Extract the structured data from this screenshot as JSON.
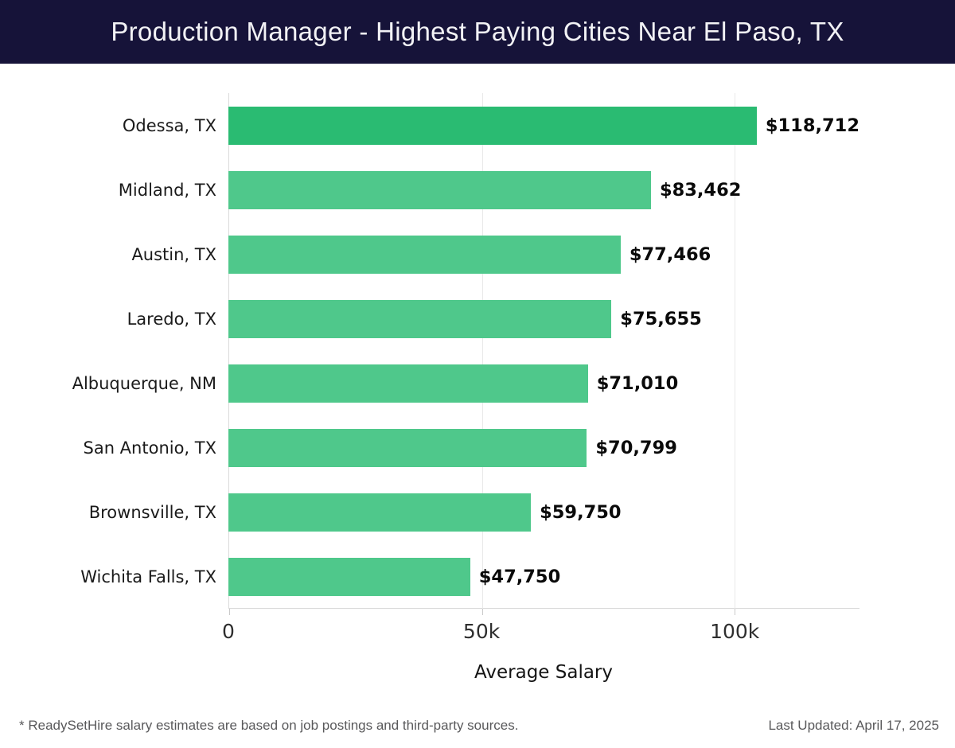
{
  "header": {
    "title": "Production Manager - Highest Paying Cities Near El Paso, TX",
    "bg_color": "#161339",
    "text_color": "#f2f2f5"
  },
  "chart_data": {
    "type": "bar",
    "orientation": "horizontal",
    "title": "Production Manager - Highest Paying Cities Near El Paso, TX",
    "categories": [
      "Odessa, TX",
      "Midland, TX",
      "Austin, TX",
      "Laredo, TX",
      "Albuquerque, NM",
      "San Antonio, TX",
      "Brownsville, TX",
      "Wichita Falls, TX"
    ],
    "values": [
      118712,
      83462,
      77466,
      75655,
      71010,
      70799,
      59750,
      47750
    ],
    "value_labels": [
      "$118,712",
      "$83,462",
      "$77,466",
      "$75,655",
      "$71,010",
      "$70,799",
      "$59,750",
      "$47,750"
    ],
    "xlabel": "Average Salary",
    "ylabel": "",
    "xlim": [
      0,
      124650
    ],
    "x_ticks": [
      {
        "value": 0,
        "label": "0"
      },
      {
        "value": 50000,
        "label": "50k"
      },
      {
        "value": 100000,
        "label": "100k"
      }
    ],
    "grid": "vertical",
    "legend": "none",
    "highlight_index": 0,
    "highlight_color": "#2abb72",
    "bar_color": "#4fc88b"
  },
  "footer": {
    "note": "* ReadySetHire salary estimates are based on job postings and third-party sources.",
    "last_updated": "Last Updated: April 17, 2025"
  }
}
